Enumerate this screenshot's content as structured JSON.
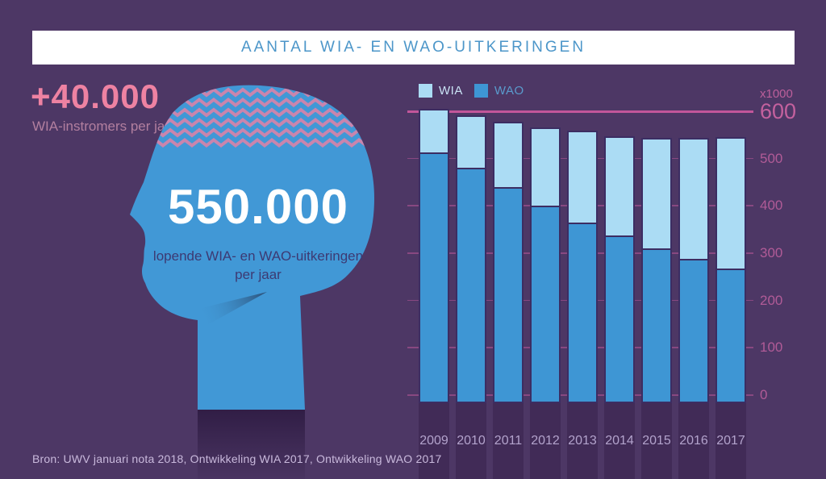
{
  "title": "AANTAL WIA- EN WAO-UITKERINGEN",
  "stats": {
    "inflow_number": "+40.000",
    "inflow_caption": "WIA-instromers per jaar",
    "head_number": "550.000",
    "head_caption_line1": "lopende WIA- en WAO-uitkeringen",
    "head_caption_line2": "per jaar"
  },
  "legend": [
    {
      "label": "WIA",
      "color": "#abdcf4"
    },
    {
      "label": "WAO",
      "color": "#3e96d4"
    }
  ],
  "axis": {
    "unit_label": "x1000",
    "ticks": [
      600,
      500,
      400,
      300,
      200,
      100,
      0
    ]
  },
  "chart_data": {
    "type": "bar",
    "stacked": true,
    "title": "Aantal WIA- en WAO-uitkeringen",
    "categories": [
      "2009",
      "2010",
      "2011",
      "2012",
      "2013",
      "2014",
      "2015",
      "2016",
      "2017"
    ],
    "series": [
      {
        "name": "WAO",
        "color": "#3e96d4",
        "values": [
          517,
          484,
          443,
          404,
          368,
          341,
          314,
          291,
          271
        ]
      },
      {
        "name": "WIA",
        "color": "#abdcf4",
        "values": [
          88,
          107,
          135,
          162,
          191,
          206,
          230,
          253,
          274
        ]
      }
    ],
    "ylabel": "x1000",
    "ylim": [
      0,
      600
    ],
    "grid": true,
    "legend_position": "top-left"
  },
  "source": "Bron: UWV januari nota 2018, Ontwikkeling WIA 2017, Ontwikkeling WAO 2017",
  "colors": {
    "background": "#4d3765",
    "title_text": "#4c96c9",
    "accent_pink": "#ee82a2",
    "muted_pink": "#b27f9f",
    "axis_pink": "#c4619e",
    "gridline_pink": "#c2569a",
    "year_label": "#b3a3cc",
    "head_blue": "#4198d6",
    "zigzag_pink": "#c985ad",
    "head_caption_indigo": "#3d3a73"
  }
}
